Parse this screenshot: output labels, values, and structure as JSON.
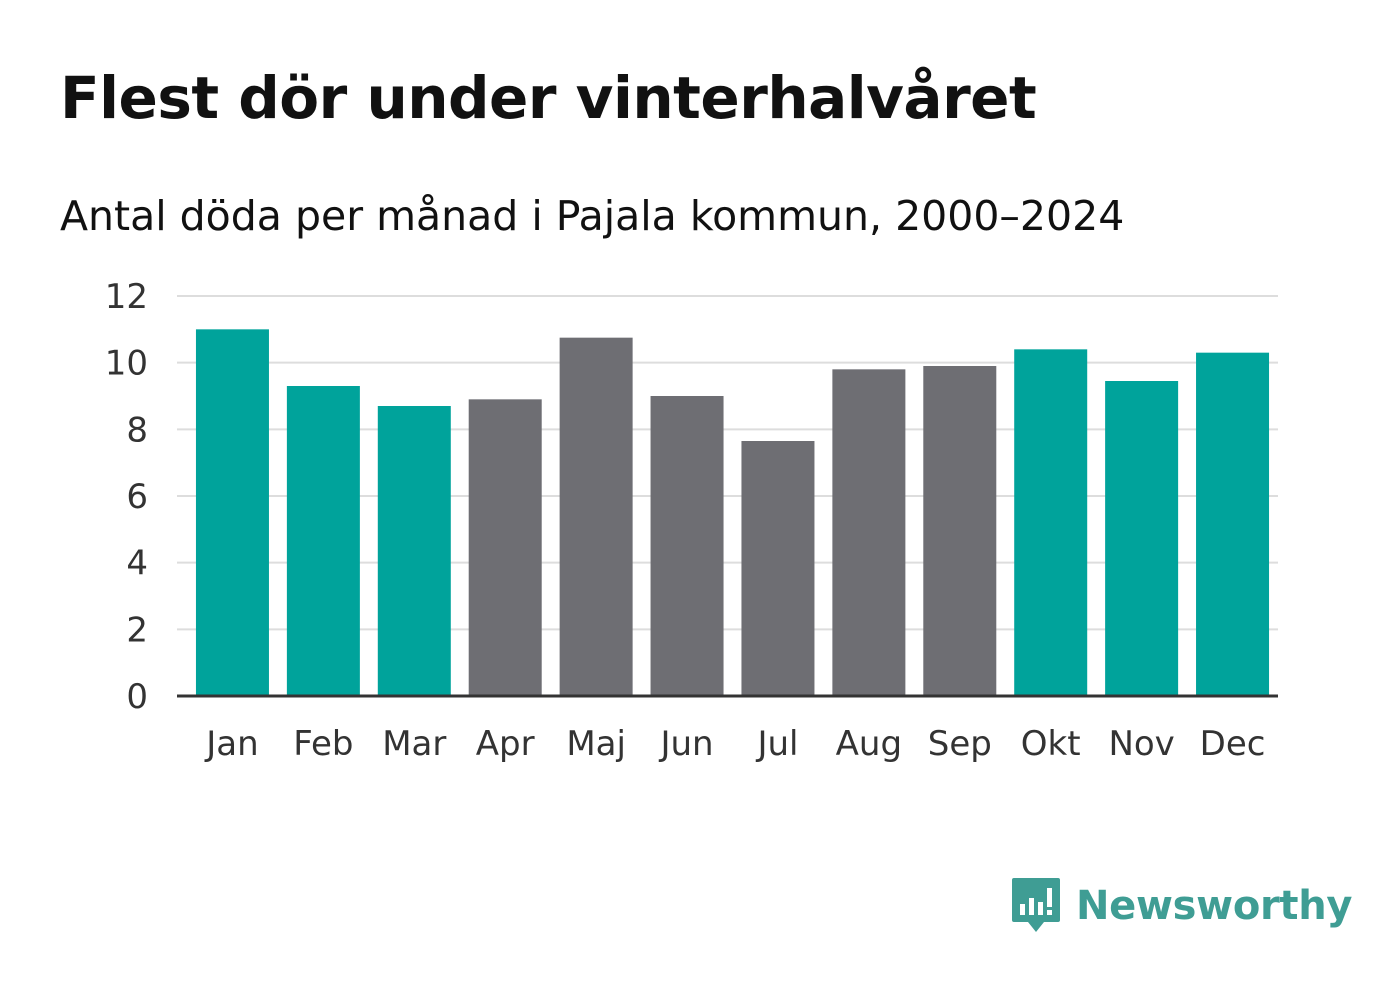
{
  "header": {
    "title": "Flest dör under vinterhalvåret",
    "subtitle": "Antal döda per månad i Pajala kommun, 2000–2024"
  },
  "brand": {
    "name": "Newsworthy",
    "color": "#3f9d94",
    "icon": "bar-chart-speech-bubble-icon"
  },
  "colors": {
    "winter": "#00a39b",
    "summer": "#6e6e73",
    "grid": "#dddddd",
    "axis": "#333333"
  },
  "chart_data": {
    "type": "bar",
    "title": "Flest dör under vinterhalvåret",
    "subtitle": "Antal döda per månad i Pajala kommun, 2000–2024",
    "xlabel": "",
    "ylabel": "",
    "categories": [
      "Jan",
      "Feb",
      "Mar",
      "Apr",
      "Maj",
      "Jun",
      "Jul",
      "Aug",
      "Sep",
      "Okt",
      "Nov",
      "Dec"
    ],
    "values": [
      11.0,
      9.3,
      8.7,
      8.9,
      10.75,
      9.0,
      7.65,
      9.8,
      9.9,
      10.4,
      9.45,
      10.3
    ],
    "highlight": [
      "winter",
      "winter",
      "winter",
      "summer",
      "summer",
      "summer",
      "summer",
      "summer",
      "summer",
      "winter",
      "winter",
      "winter"
    ],
    "ylim": [
      0,
      12
    ],
    "yticks": [
      0,
      2,
      4,
      6,
      8,
      10,
      12
    ],
    "grid": true
  }
}
